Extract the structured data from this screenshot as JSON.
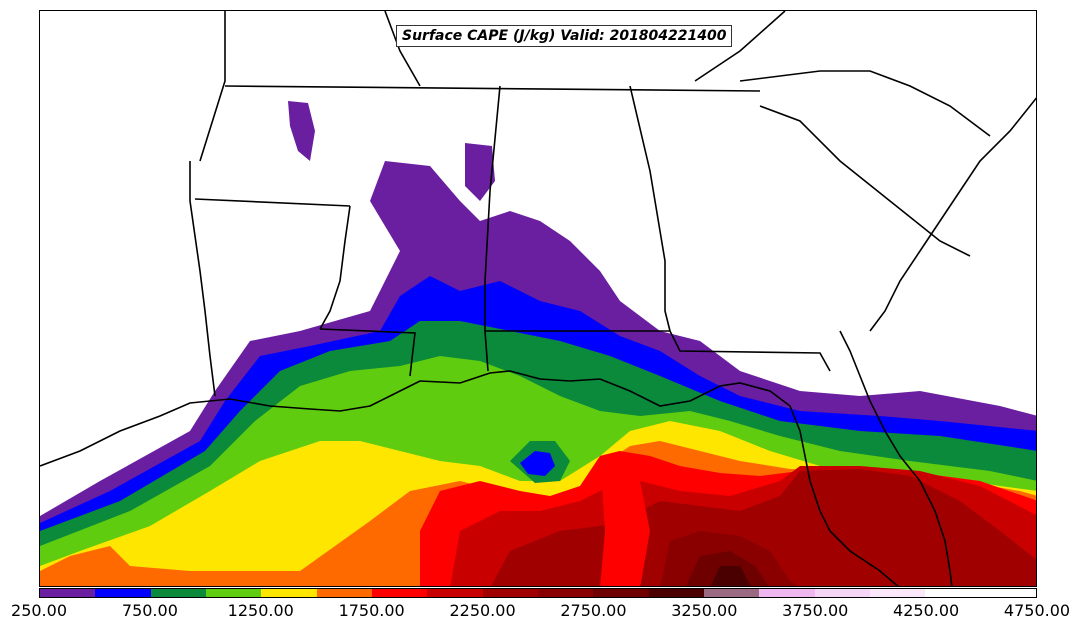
{
  "title": "Surface CAPE (J/kg) Valid: 201804221400",
  "colorbar": {
    "colors": [
      "#6a1fa0",
      "#0000ff",
      "#0a8a3a",
      "#5fcc10",
      "#ffe600",
      "#ff6a00",
      "#ff0000",
      "#c80000",
      "#a00000",
      "#8a0000",
      "#6e0000",
      "#4a0000",
      "#9a6a82",
      "#f0b6f0",
      "#f6d6f6",
      "#fbe8fb",
      "#ffffff",
      "#ffffff"
    ],
    "tick_labels": [
      "250.00",
      "750.00",
      "1250.00",
      "1750.00",
      "2250.00",
      "2750.00",
      "3250.00",
      "3750.00",
      "4250.00",
      "4750.00"
    ],
    "range": [
      250,
      4750
    ]
  }
}
